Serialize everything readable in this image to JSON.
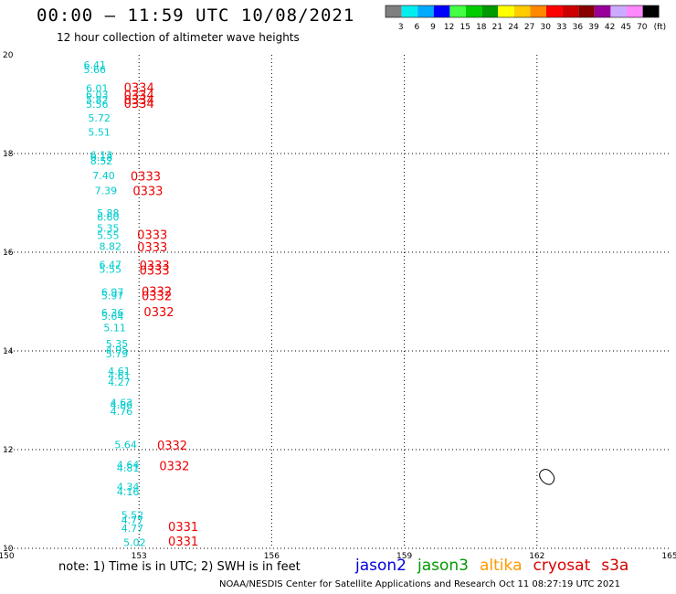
{
  "header": {
    "title": "00:00 – 11:59 UTC 10/08/2021",
    "subtitle": "12 hour collection of altimeter wave heights"
  },
  "color_scale": {
    "ticks": [
      "3",
      "6",
      "9",
      "12",
      "15",
      "18",
      "21",
      "24",
      "27",
      "30",
      "33",
      "36",
      "39",
      "42",
      "45",
      "70",
      "(ft)"
    ],
    "colors": [
      "#7f7f7f",
      "#00eeee",
      "#00aaff",
      "#0000ff",
      "#44ff44",
      "#00cc00",
      "#009900",
      "#ffff00",
      "#ffcc00",
      "#ff8800",
      "#ff0000",
      "#cc0000",
      "#880000",
      "#990099",
      "#ccaaff",
      "#ff88ff",
      "#000000"
    ]
  },
  "footnote": "note: 1) Time is in UTC; 2) SWH is in feet",
  "credit": "NOAA/NESDIS Center for Satellite Applications and Research    Oct 11 08:27:19 UTC 2021",
  "satellites": [
    {
      "name": "jason2",
      "color": "#0000dd"
    },
    {
      "name": "jason3",
      "color": "#009900"
    },
    {
      "name": "altika",
      "color": "#ff9900"
    },
    {
      "name": "cryosat",
      "color": "#dd0000"
    },
    {
      "name": "s3a",
      "color": "#cc0000"
    }
  ],
  "chart_data": {
    "type": "scatter",
    "title": "",
    "xlabel": "",
    "ylabel": "",
    "xlim": [
      150,
      165
    ],
    "ylim": [
      10,
      20
    ],
    "x_ticks": [
      "150",
      "153",
      "156",
      "159",
      "162",
      "165"
    ],
    "y_ticks": [
      "10",
      "12",
      "14",
      "16",
      "18",
      "20"
    ],
    "grid": true,
    "series": [
      {
        "color": "#00cccc",
        "points": [
          {
            "x": 152.0,
            "y": 19.72,
            "label": "6.41"
          },
          {
            "x": 152.0,
            "y": 19.63,
            "label": "5.66"
          },
          {
            "x": 152.05,
            "y": 19.25,
            "label": "6.01"
          },
          {
            "x": 152.05,
            "y": 19.12,
            "label": "6.03"
          },
          {
            "x": 152.05,
            "y": 19.02,
            "label": "5.82"
          },
          {
            "x": 152.05,
            "y": 18.93,
            "label": "5.56"
          },
          {
            "x": 152.1,
            "y": 18.65,
            "label": "5.72"
          },
          {
            "x": 152.1,
            "y": 18.36,
            "label": "5.51"
          },
          {
            "x": 152.15,
            "y": 17.9,
            "label": "6.13"
          },
          {
            "x": 152.15,
            "y": 17.85,
            "label": "6.18"
          },
          {
            "x": 152.15,
            "y": 17.78,
            "label": "8.52"
          },
          {
            "x": 152.2,
            "y": 17.48,
            "label": "7.40"
          },
          {
            "x": 152.25,
            "y": 17.18,
            "label": "7.39"
          },
          {
            "x": 152.3,
            "y": 16.72,
            "label": "5.88"
          },
          {
            "x": 152.3,
            "y": 16.64,
            "label": "6.60"
          },
          {
            "x": 152.3,
            "y": 16.42,
            "label": "5.35"
          },
          {
            "x": 152.3,
            "y": 16.27,
            "label": "5.55"
          },
          {
            "x": 152.35,
            "y": 16.05,
            "label": "8.82"
          },
          {
            "x": 152.35,
            "y": 15.68,
            "label": "6.47"
          },
          {
            "x": 152.35,
            "y": 15.58,
            "label": "5.55"
          },
          {
            "x": 152.4,
            "y": 15.12,
            "label": "6.97"
          },
          {
            "x": 152.4,
            "y": 15.05,
            "label": "5.97"
          },
          {
            "x": 152.4,
            "y": 14.7,
            "label": "6.36"
          },
          {
            "x": 152.4,
            "y": 14.63,
            "label": "5.64"
          },
          {
            "x": 152.45,
            "y": 14.4,
            "label": "5.11"
          },
          {
            "x": 152.5,
            "y": 14.07,
            "label": "5.35"
          },
          {
            "x": 152.5,
            "y": 13.95,
            "label": "4.95"
          },
          {
            "x": 152.5,
            "y": 13.87,
            "label": "5.79"
          },
          {
            "x": 152.55,
            "y": 13.52,
            "label": "4.61"
          },
          {
            "x": 152.55,
            "y": 13.43,
            "label": "4.61"
          },
          {
            "x": 152.55,
            "y": 13.3,
            "label": "4.27"
          },
          {
            "x": 152.6,
            "y": 12.88,
            "label": "4.63"
          },
          {
            "x": 152.6,
            "y": 12.83,
            "label": "4.86"
          },
          {
            "x": 152.6,
            "y": 12.7,
            "label": "4.76"
          },
          {
            "x": 152.7,
            "y": 12.03,
            "label": "5.64"
          },
          {
            "x": 152.75,
            "y": 11.62,
            "label": "4.64"
          },
          {
            "x": 152.75,
            "y": 11.56,
            "label": "4.81"
          },
          {
            "x": 152.75,
            "y": 11.18,
            "label": "4.34"
          },
          {
            "x": 152.75,
            "y": 11.07,
            "label": "4.16"
          },
          {
            "x": 152.85,
            "y": 10.6,
            "label": "5.52"
          },
          {
            "x": 152.85,
            "y": 10.5,
            "label": "4.77"
          },
          {
            "x": 152.85,
            "y": 10.33,
            "label": "4.77"
          },
          {
            "x": 152.9,
            "y": 10.05,
            "label": "5.02"
          }
        ]
      },
      {
        "color": "#ee0000",
        "points": [
          {
            "x": 153.0,
            "y": 19.25,
            "label": "0334"
          },
          {
            "x": 153.0,
            "y": 19.1,
            "label": "0334"
          },
          {
            "x": 153.0,
            "y": 19.0,
            "label": "0334"
          },
          {
            "x": 153.0,
            "y": 18.93,
            "label": "0334"
          },
          {
            "x": 153.15,
            "y": 17.45,
            "label": "0333"
          },
          {
            "x": 153.2,
            "y": 17.16,
            "label": "0333"
          },
          {
            "x": 153.3,
            "y": 16.27,
            "label": "0333"
          },
          {
            "x": 153.3,
            "y": 16.02,
            "label": "0333"
          },
          {
            "x": 153.35,
            "y": 15.65,
            "label": "0333"
          },
          {
            "x": 153.35,
            "y": 15.55,
            "label": "0333"
          },
          {
            "x": 153.4,
            "y": 15.12,
            "label": "0332"
          },
          {
            "x": 153.4,
            "y": 15.03,
            "label": "0332"
          },
          {
            "x": 153.45,
            "y": 14.7,
            "label": "0332"
          },
          {
            "x": 153.75,
            "y": 12.0,
            "label": "0332"
          },
          {
            "x": 153.8,
            "y": 11.58,
            "label": "0332"
          },
          {
            "x": 154.0,
            "y": 10.35,
            "label": "0331"
          },
          {
            "x": 154.0,
            "y": 10.06,
            "label": "0331"
          }
        ]
      }
    ]
  }
}
